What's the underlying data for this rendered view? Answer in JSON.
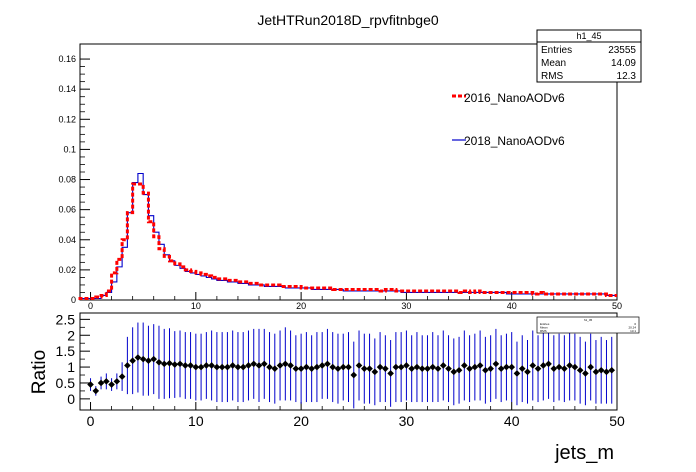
{
  "title": "JetHTRun2018D_rpvfitnbge0",
  "stats": {
    "name": "h1_45",
    "rows": [
      {
        "label": "Entries",
        "value": "23555"
      },
      {
        "label": "Mean",
        "value": "14.09"
      },
      {
        "label": "RMS",
        "value": "12.3"
      }
    ]
  },
  "mini_stats": {
    "name": "h1_45",
    "rows": [
      {
        "label": "Entries",
        "value": "0"
      },
      {
        "label": "Mean",
        "value": "20.24"
      },
      {
        "label": "RMS",
        "value": "13.1"
      }
    ]
  },
  "legend": [
    {
      "name": "2016_NanoAODv6",
      "color": "#ff0000",
      "style": "dashed"
    },
    {
      "name": "2018_NanoAODv6",
      "color": "#0000cc",
      "style": "solid"
    }
  ],
  "colors": {
    "series_2016": "#ff0000",
    "series_2018": "#0000cc",
    "ratio_points": "#000000",
    "ratio_errors": "#0000cc"
  },
  "chart_data": [
    {
      "type": "histogram",
      "title": "JetHTRun2018D_rpvfitnbge0",
      "xlim": [
        -1,
        50
      ],
      "ylim": [
        0,
        0.17
      ],
      "xticks": [
        0,
        10,
        20,
        30,
        40,
        50
      ],
      "yticks": [
        0,
        0.02,
        0.04,
        0.06,
        0.08,
        0.1,
        0.12,
        0.14,
        0.16
      ],
      "ytick_labels": [
        "0",
        "0.02",
        "0.04",
        "0.06",
        "0.08",
        "0.1",
        "0.12",
        "0.14",
        "0.16"
      ],
      "bin_width": 0.5,
      "bin_start": -1,
      "series": [
        {
          "name": "2016_NanoAODv6",
          "values": [
            0.001,
            0.001,
            0.001,
            0.002,
            0.003,
            0.006,
            0.018,
            0.027,
            0.04,
            0.058,
            0.077,
            0.077,
            0.071,
            0.052,
            0.042,
            0.034,
            0.029,
            0.026,
            0.024,
            0.022,
            0.02,
            0.019,
            0.018,
            0.017,
            0.016,
            0.015,
            0.014,
            0.014,
            0.013,
            0.013,
            0.012,
            0.012,
            0.011,
            0.011,
            0.01,
            0.01,
            0.01,
            0.01,
            0.009,
            0.009,
            0.009,
            0.009,
            0.008,
            0.008,
            0.008,
            0.008,
            0.008,
            0.008,
            0.007,
            0.007,
            0.007,
            0.007,
            0.007,
            0.007,
            0.007,
            0.007,
            0.007,
            0.006,
            0.007,
            0.007,
            0.006,
            0.006,
            0.006,
            0.006,
            0.006,
            0.006,
            0.006,
            0.006,
            0.006,
            0.006,
            0.006,
            0.006,
            0.005,
            0.006,
            0.005,
            0.006,
            0.005,
            0.005,
            0.005,
            0.005,
            0.005,
            0.005,
            0.005,
            0.005,
            0.005,
            0.005,
            0.004,
            0.005,
            0.004,
            0.004,
            0.004,
            0.004,
            0.004,
            0.004,
            0.004,
            0.004,
            0.004,
            0.004,
            0.004,
            0.004,
            0.003,
            0.003
          ]
        },
        {
          "name": "2018_NanoAODv6",
          "values": [
            0.001,
            0.001,
            0.001,
            0.001,
            0.003,
            0.005,
            0.012,
            0.022,
            0.035,
            0.058,
            0.078,
            0.084,
            0.07,
            0.056,
            0.045,
            0.037,
            0.03,
            0.026,
            0.023,
            0.021,
            0.019,
            0.018,
            0.017,
            0.016,
            0.015,
            0.014,
            0.013,
            0.013,
            0.012,
            0.012,
            0.011,
            0.011,
            0.01,
            0.01,
            0.01,
            0.009,
            0.009,
            0.009,
            0.009,
            0.008,
            0.008,
            0.008,
            0.008,
            0.008,
            0.007,
            0.007,
            0.007,
            0.007,
            0.007,
            0.007,
            0.006,
            0.006,
            0.006,
            0.006,
            0.006,
            0.006,
            0.006,
            0.006,
            0.006,
            0.006,
            0.006,
            0.005,
            0.005,
            0.005,
            0.005,
            0.005,
            0.005,
            0.005,
            0.005,
            0.005,
            0.005,
            0.005,
            0.005,
            0.005,
            0.005,
            0.005,
            0.005,
            0.005,
            0.005,
            0.005,
            0.005,
            0.004,
            0.004,
            0.004,
            0.004,
            0.004,
            0.004,
            0.004,
            0.004,
            0.004,
            0.004,
            0.004,
            0.004,
            0.004,
            0.004,
            0.004,
            0.004,
            0.004,
            0.004,
            0.004,
            0.003,
            0.003
          ]
        }
      ]
    },
    {
      "type": "scatter",
      "ylabel": "Ratio",
      "xlabel": "jets_m",
      "xlim": [
        -1,
        50
      ],
      "ylim": [
        -0.35,
        2.7
      ],
      "xticks": [
        0,
        10,
        20,
        30,
        40,
        50
      ],
      "yticks": [
        0,
        0.5,
        1,
        1.5,
        2,
        2.5
      ],
      "ytick_labels": [
        "0",
        "0.5",
        "1",
        "1.5",
        "2",
        "2.5"
      ],
      "x": [
        0,
        0.5,
        1,
        1.5,
        2,
        2.5,
        3,
        3.5,
        4,
        4.5,
        5,
        5.5,
        6,
        6.5,
        7,
        7.5,
        8,
        8.5,
        9,
        9.5,
        10,
        10.5,
        11,
        11.5,
        12,
        12.5,
        13,
        13.5,
        14,
        14.5,
        15,
        15.5,
        16,
        16.5,
        17,
        17.5,
        18,
        18.5,
        19,
        19.5,
        20,
        20.5,
        21,
        21.5,
        22,
        22.5,
        23,
        23.5,
        24,
        24.5,
        25,
        25.5,
        26,
        26.5,
        27,
        27.5,
        28,
        28.5,
        29,
        29.5,
        30,
        30.5,
        31,
        31.5,
        32,
        32.5,
        33,
        33.5,
        34,
        34.5,
        35,
        35.5,
        36,
        36.5,
        37,
        37.5,
        38,
        38.5,
        39,
        39.5,
        40,
        40.5,
        41,
        41.5,
        42,
        42.5,
        43,
        43.5,
        44,
        44.5,
        45,
        45.5,
        46,
        46.5,
        47,
        47.5,
        48,
        48.5,
        49,
        49.5
      ],
      "y": [
        0.45,
        0.25,
        0.5,
        0.55,
        0.45,
        0.55,
        0.7,
        1.05,
        1.2,
        1.3,
        1.25,
        1.2,
        1.25,
        1.15,
        1.1,
        1.12,
        1.08,
        1.1,
        1.05,
        1.05,
        1.0,
        1.0,
        1.05,
        1.05,
        1.0,
        1.0,
        1.0,
        1.05,
        1.0,
        1.0,
        1.05,
        1.1,
        1.05,
        1.1,
        1.0,
        0.95,
        1.05,
        1.1,
        1.05,
        0.95,
        0.95,
        1.0,
        0.95,
        1.0,
        1.05,
        1.1,
        1.0,
        0.95,
        1.0,
        1.0,
        0.75,
        1.05,
        0.95,
        0.95,
        0.85,
        1.0,
        0.95,
        0.8,
        1.0,
        1.0,
        1.05,
        0.95,
        1.0,
        0.95,
        0.95,
        1.0,
        0.95,
        1.05,
        0.95,
        0.85,
        0.9,
        1.05,
        0.95,
        1.0,
        1.05,
        0.9,
        0.95,
        1.1,
        0.95,
        1.0,
        1.0,
        0.8,
        0.95,
        0.85,
        1.05,
        0.95,
        1.05,
        1.1,
        0.95,
        1.0,
        0.95,
        1.05,
        1.0,
        0.9,
        0.8,
        1.0,
        0.85,
        0.9,
        0.85,
        0.9
      ],
      "err": [
        0.2,
        0.15,
        0.2,
        0.25,
        0.2,
        0.25,
        0.45,
        0.9,
        1.05,
        1.1,
        1.15,
        1.1,
        1.1,
        1.15,
        1.1,
        1.1,
        1.05,
        1.05,
        1.05,
        1.05,
        1.05,
        1.05,
        1.05,
        1.1,
        1.1,
        1.1,
        1.1,
        1.1,
        1.1,
        1.1,
        1.1,
        1.1,
        1.15,
        1.1,
        1.1,
        1.1,
        1.1,
        1.15,
        1.1,
        1.05,
        1.1,
        1.1,
        1.05,
        1.1,
        1.05,
        1.1,
        1.1,
        1.1,
        1.05,
        1.1,
        1.05,
        1.1,
        1.1,
        1.1,
        1.05,
        1.1,
        1.05,
        1.05,
        1.1,
        1.1,
        1.1,
        1.05,
        1.1,
        1.05,
        1.05,
        1.1,
        1.05,
        1.1,
        1.05,
        1.05,
        1.05,
        1.1,
        1.05,
        1.05,
        1.1,
        1.05,
        1.05,
        1.1,
        1.05,
        1.05,
        1.1,
        1.0,
        1.05,
        1.0,
        1.1,
        1.05,
        1.1,
        1.1,
        1.05,
        1.05,
        1.05,
        1.1,
        1.05,
        1.05,
        1.0,
        1.05,
        1.0,
        1.05,
        1.0,
        1.05
      ]
    }
  ]
}
